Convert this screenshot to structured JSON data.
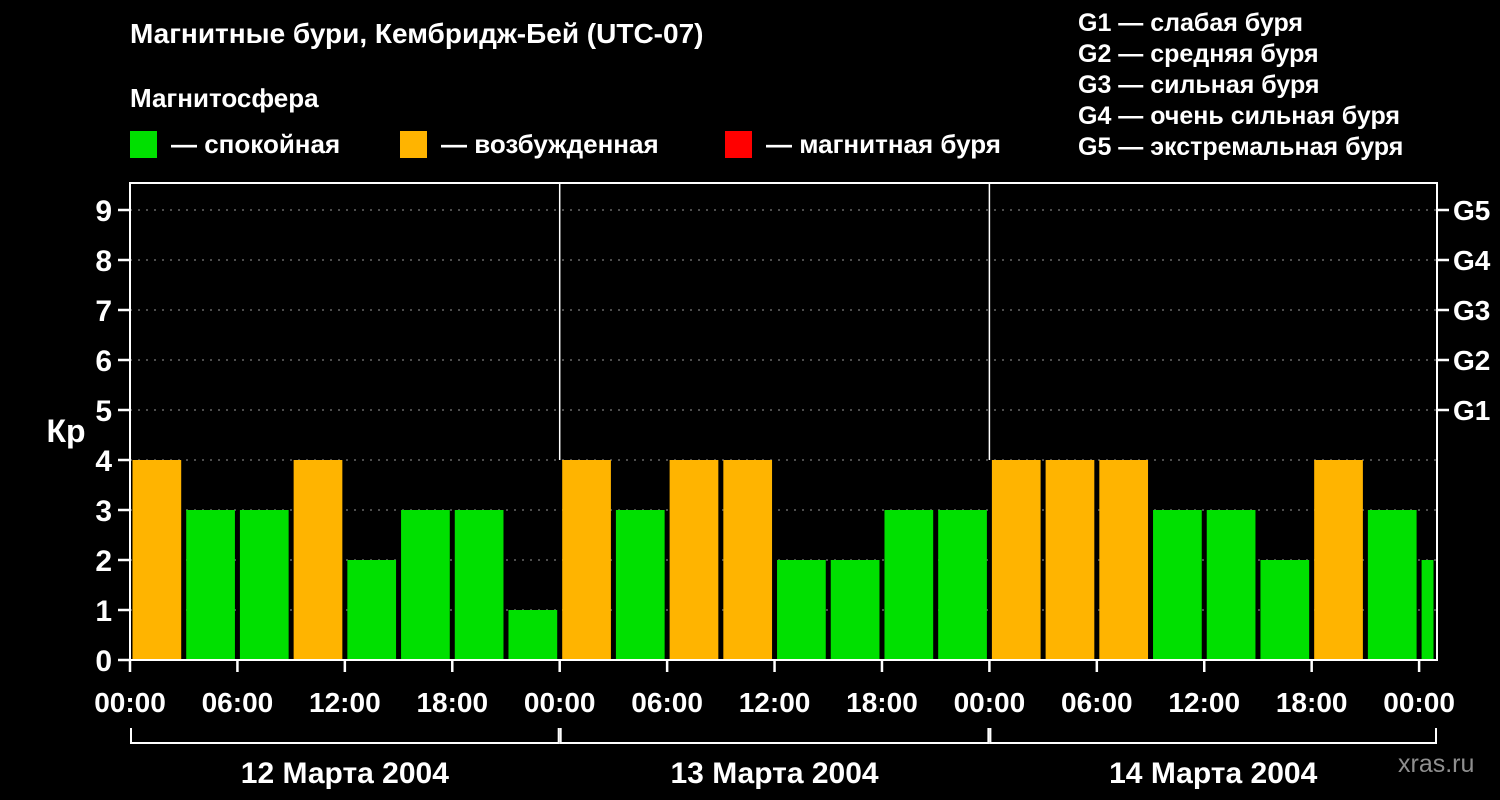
{
  "legend": {
    "items": [
      {
        "state": "quiet",
        "label": "— спокойная",
        "color": "#00e000"
      },
      {
        "state": "excited",
        "label": "— возбужденная",
        "color": "#ffb400"
      },
      {
        "state": "storm",
        "label": "— магнитная буря",
        "color": "#ff0000"
      }
    ]
  },
  "storm_scale": [
    "G1 — слабая буря",
    "G2 — средняя буря",
    "G3 — сильная буря",
    "G4 — очень сильная буря",
    "G5 — экстремальная буря"
  ],
  "watermark": "xras.ru",
  "chart_data": {
    "type": "bar",
    "title": "Магнитные бури, Кембридж-Бей (UTC-07)",
    "subtitle": "Магнитосфера",
    "ylabel": "Кр",
    "ylim": [
      0,
      9.5
    ],
    "yticks": [
      0,
      1,
      2,
      3,
      4,
      5,
      6,
      7,
      8,
      9
    ],
    "right_axis": [
      {
        "kp": 5,
        "label": "G1"
      },
      {
        "kp": 6,
        "label": "G2"
      },
      {
        "kp": 7,
        "label": "G3"
      },
      {
        "kp": 8,
        "label": "G4"
      },
      {
        "kp": 9,
        "label": "G5"
      }
    ],
    "xticks": [
      {
        "hour": 0,
        "label": "00:00"
      },
      {
        "hour": 6,
        "label": "06:00"
      },
      {
        "hour": 12,
        "label": "12:00"
      },
      {
        "hour": 18,
        "label": "18:00"
      },
      {
        "hour": 24,
        "label": "00:00"
      },
      {
        "hour": 30,
        "label": "06:00"
      },
      {
        "hour": 36,
        "label": "12:00"
      },
      {
        "hour": 42,
        "label": "18:00"
      },
      {
        "hour": 48,
        "label": "00:00"
      },
      {
        "hour": 54,
        "label": "06:00"
      },
      {
        "hour": 60,
        "label": "12:00"
      },
      {
        "hour": 66,
        "label": "18:00"
      },
      {
        "hour": 72,
        "label": "00:00"
      }
    ],
    "days": [
      {
        "label": "12 Марта 2004",
        "start_hour": 0,
        "end_hour": 24
      },
      {
        "label": "13 Марта 2004",
        "start_hour": 24,
        "end_hour": 48
      },
      {
        "label": "14 Марта 2004",
        "start_hour": 48,
        "end_hour": 73
      }
    ],
    "colors": {
      "quiet": "#00e000",
      "excited": "#ffb400",
      "storm": "#ff0000"
    },
    "bars": [
      {
        "hour": 0,
        "kp": 4,
        "state": "excited"
      },
      {
        "hour": 3,
        "kp": 3,
        "state": "quiet"
      },
      {
        "hour": 6,
        "kp": 3,
        "state": "quiet"
      },
      {
        "hour": 9,
        "kp": 4,
        "state": "excited"
      },
      {
        "hour": 12,
        "kp": 2,
        "state": "quiet"
      },
      {
        "hour": 15,
        "kp": 3,
        "state": "quiet"
      },
      {
        "hour": 18,
        "kp": 3,
        "state": "quiet"
      },
      {
        "hour": 21,
        "kp": 1,
        "state": "quiet"
      },
      {
        "hour": 24,
        "kp": 4,
        "state": "excited"
      },
      {
        "hour": 27,
        "kp": 3,
        "state": "quiet"
      },
      {
        "hour": 30,
        "kp": 4,
        "state": "excited"
      },
      {
        "hour": 33,
        "kp": 4,
        "state": "excited"
      },
      {
        "hour": 36,
        "kp": 2,
        "state": "quiet"
      },
      {
        "hour": 39,
        "kp": 2,
        "state": "quiet"
      },
      {
        "hour": 42,
        "kp": 3,
        "state": "quiet"
      },
      {
        "hour": 45,
        "kp": 3,
        "state": "quiet"
      },
      {
        "hour": 48,
        "kp": 4,
        "state": "excited"
      },
      {
        "hour": 51,
        "kp": 4,
        "state": "excited"
      },
      {
        "hour": 54,
        "kp": 4,
        "state": "excited"
      },
      {
        "hour": 57,
        "kp": 3,
        "state": "quiet"
      },
      {
        "hour": 60,
        "kp": 3,
        "state": "quiet"
      },
      {
        "hour": 63,
        "kp": 2,
        "state": "quiet"
      },
      {
        "hour": 66,
        "kp": 4,
        "state": "excited"
      },
      {
        "hour": 69,
        "kp": 3,
        "state": "quiet"
      },
      {
        "hour": 72,
        "kp": 2,
        "state": "quiet"
      }
    ]
  }
}
